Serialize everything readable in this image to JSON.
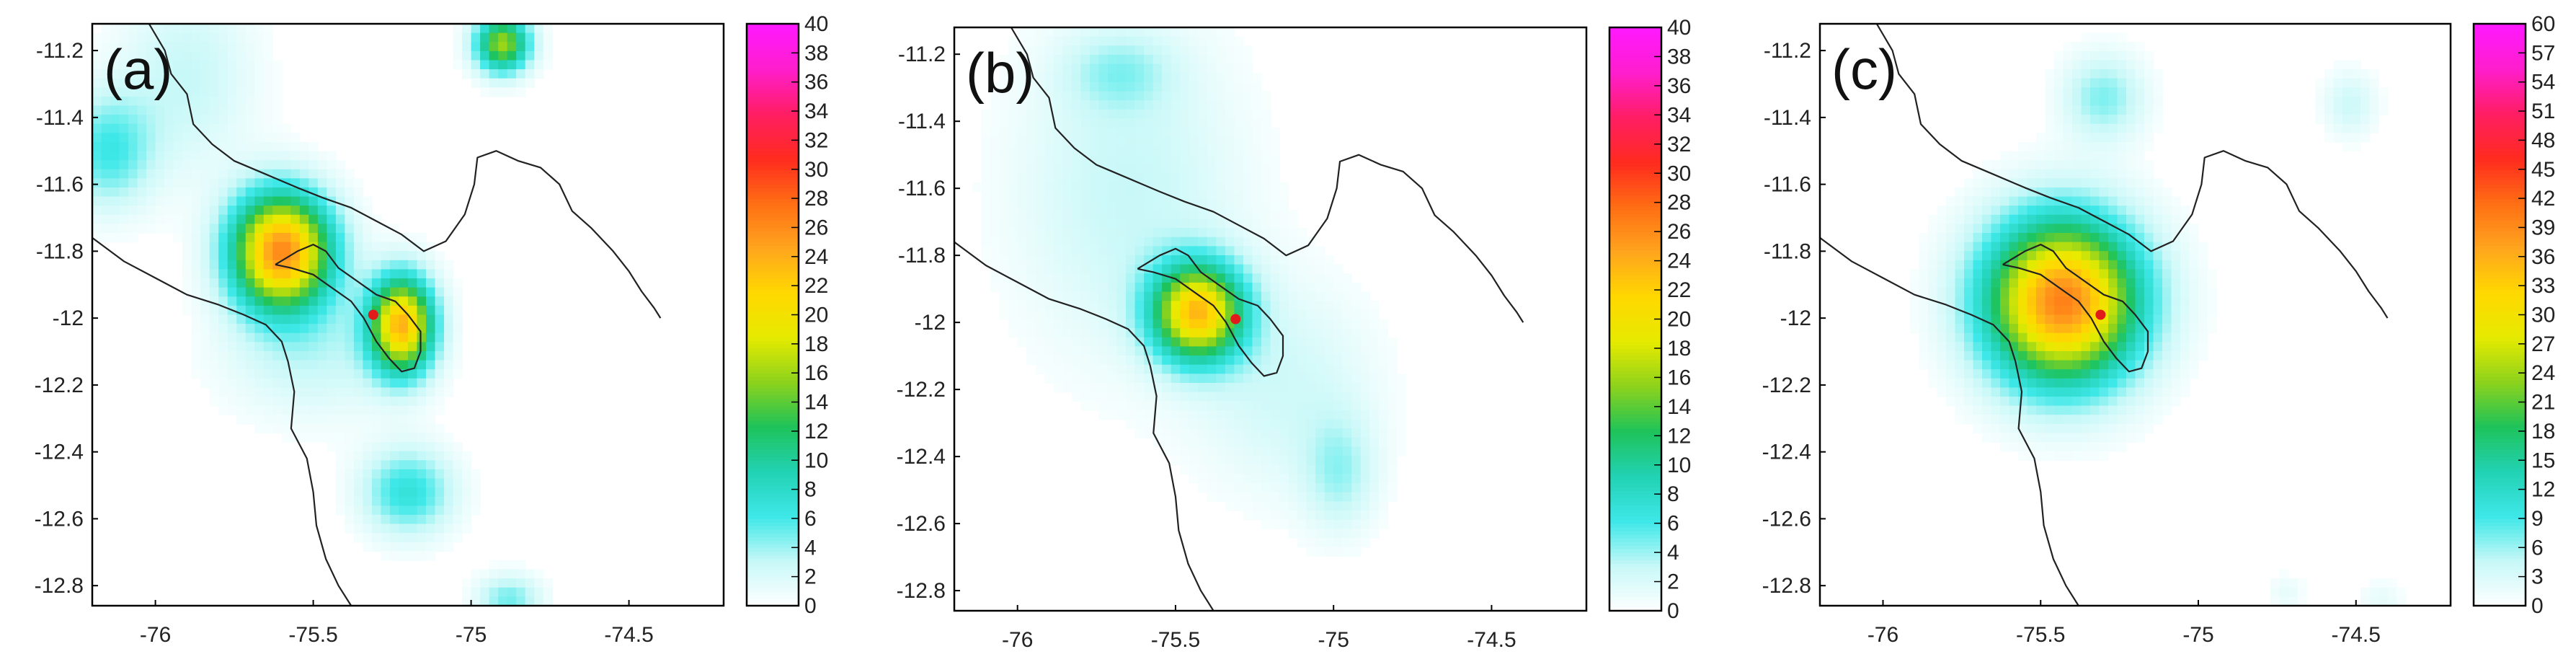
{
  "colors": {
    "colormap": [
      "#ffffff",
      "#c8f8f8",
      "#3ee8e8",
      "#22d2b4",
      "#1ec35a",
      "#8cd21c",
      "#e6eb00",
      "#ffd800",
      "#ffa51e",
      "#ff6e14",
      "#ff2a1e",
      "#ff1e64",
      "#ff1ecd",
      "#ff19ff"
    ],
    "border": "#222222",
    "frame": "#000000",
    "epicenter": "#e11a1a"
  },
  "chart_data": [
    {
      "type": "heatmap",
      "panel_label": "(a)",
      "x_ticks": [
        "-76",
        "-75.5",
        "-75",
        "-74.5"
      ],
      "y_ticks": [
        "-11.2",
        "-11.4",
        "-11.6",
        "-11.8",
        "-12",
        "-12.2",
        "-12.4",
        "-12.6",
        "-12.8"
      ],
      "xlim": [
        -76.2,
        -74.2
      ],
      "ylim": [
        -12.86,
        -11.12
      ],
      "colorbar": {
        "min": 0,
        "max": 40,
        "ticks": [
          "0",
          "2",
          "4",
          "6",
          "8",
          "10",
          "12",
          "14",
          "16",
          "18",
          "20",
          "22",
          "24",
          "26",
          "28",
          "30",
          "32",
          "34",
          "36",
          "38",
          "40"
        ]
      },
      "blobs": [
        {
          "x": -75.6,
          "y": -11.8,
          "peak": 26,
          "sx": 0.11,
          "sy": 0.12
        },
        {
          "x": -75.22,
          "y": -12.02,
          "peak": 23,
          "sx": 0.07,
          "sy": 0.1
        },
        {
          "x": -74.9,
          "y": -11.18,
          "peak": 16,
          "sx": 0.06,
          "sy": 0.06
        },
        {
          "x": -75.2,
          "y": -12.52,
          "peak": 7,
          "sx": 0.1,
          "sy": 0.09
        },
        {
          "x": -76.15,
          "y": -11.5,
          "peak": 6,
          "sx": 0.1,
          "sy": 0.12
        },
        {
          "x": -74.88,
          "y": -12.84,
          "peak": 5,
          "sx": 0.07,
          "sy": 0.05
        },
        {
          "x": -75.5,
          "y": -12.1,
          "peak": 3,
          "sx": 0.2,
          "sy": 0.14
        },
        {
          "x": -75.9,
          "y": -11.28,
          "peak": 3,
          "sx": 0.15,
          "sy": 0.2
        }
      ],
      "epicenter": {
        "x": -75.31,
        "y": -11.99
      }
    },
    {
      "type": "heatmap",
      "panel_label": "(b)",
      "x_ticks": [
        "-76",
        "-75.5",
        "-75",
        "-74.5"
      ],
      "y_ticks": [
        "-11.2",
        "-11.4",
        "-11.6",
        "-11.8",
        "-12",
        "-12.2",
        "-12.4",
        "-12.6",
        "-12.8"
      ],
      "xlim": [
        -76.2,
        -74.2
      ],
      "ylim": [
        -12.86,
        -11.12
      ],
      "colorbar": {
        "min": 0,
        "max": 40,
        "ticks": [
          "0",
          "2",
          "4",
          "6",
          "8",
          "10",
          "12",
          "14",
          "16",
          "18",
          "20",
          "22",
          "24",
          "26",
          "28",
          "30",
          "32",
          "34",
          "36",
          "38",
          "40"
        ]
      },
      "blobs": [
        {
          "x": -75.43,
          "y": -11.97,
          "peak": 22,
          "sx": 0.1,
          "sy": 0.1
        },
        {
          "x": -75.65,
          "y": -11.6,
          "peak": 3,
          "sx": 0.25,
          "sy": 0.35
        },
        {
          "x": -75.15,
          "y": -12.2,
          "peak": 2.5,
          "sx": 0.2,
          "sy": 0.22
        },
        {
          "x": -74.98,
          "y": -12.45,
          "peak": 3.5,
          "sx": 0.08,
          "sy": 0.12
        },
        {
          "x": -75.68,
          "y": -11.25,
          "peak": 3,
          "sx": 0.12,
          "sy": 0.08
        }
      ],
      "epicenter": {
        "x": -75.31,
        "y": -11.99
      }
    },
    {
      "type": "heatmap",
      "panel_label": "(c)",
      "x_ticks": [
        "-76",
        "-75.5",
        "-75",
        "-74.5"
      ],
      "y_ticks": [
        "-11.2",
        "-11.4",
        "-11.6",
        "-11.8",
        "-12",
        "-12.2",
        "-12.4",
        "-12.6",
        "-12.8"
      ],
      "xlim": [
        -76.2,
        -74.2
      ],
      "ylim": [
        -12.86,
        -11.12
      ],
      "colorbar": {
        "min": 0,
        "max": 60,
        "ticks": [
          "0",
          "3",
          "6",
          "9",
          "12",
          "15",
          "18",
          "21",
          "24",
          "27",
          "30",
          "33",
          "36",
          "39",
          "42",
          "45",
          "48",
          "51",
          "54",
          "57",
          "60"
        ]
      },
      "blobs": [
        {
          "x": -75.43,
          "y": -11.95,
          "peak": 40,
          "sx": 0.17,
          "sy": 0.17
        },
        {
          "x": -75.3,
          "y": -11.34,
          "peak": 7,
          "sx": 0.09,
          "sy": 0.09
        },
        {
          "x": -74.52,
          "y": -11.36,
          "peak": 4,
          "sx": 0.06,
          "sy": 0.07
        },
        {
          "x": -74.72,
          "y": -12.82,
          "peak": 2,
          "sx": 0.04,
          "sy": 0.04
        },
        {
          "x": -74.42,
          "y": -12.84,
          "peak": 2,
          "sx": 0.05,
          "sy": 0.04
        }
      ],
      "epicenter": {
        "x": -75.31,
        "y": -11.99
      }
    }
  ]
}
